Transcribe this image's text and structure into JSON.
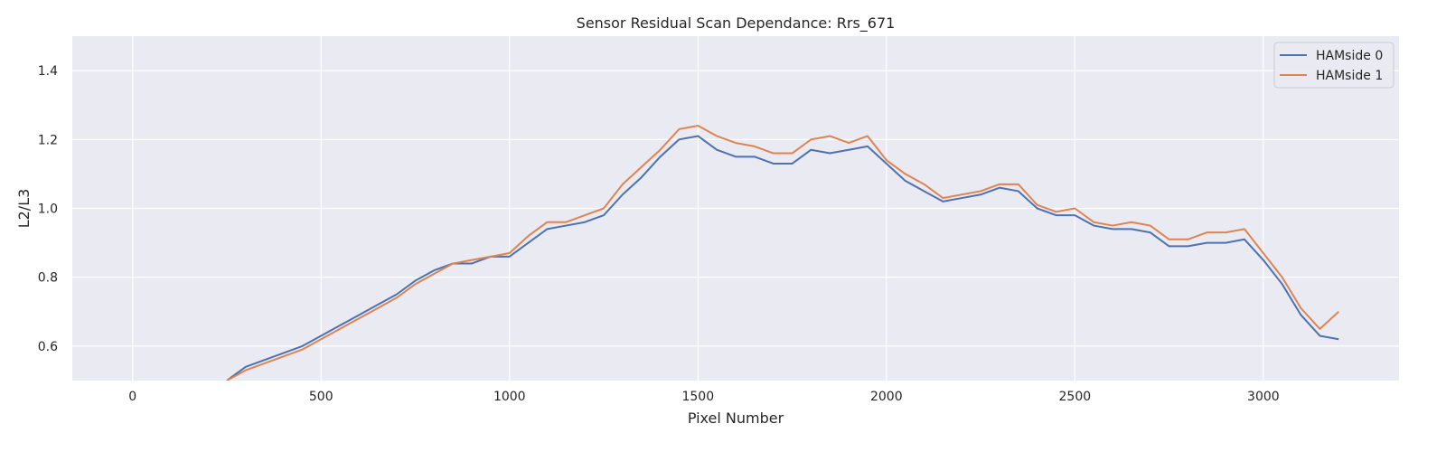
{
  "chart_data": {
    "type": "line",
    "title": "Sensor Residual Scan Dependance: Rrs_671",
    "xlabel": "Pixel Number",
    "ylabel": "L2/L3",
    "xlim": [
      -160,
      3360
    ],
    "ylim": [
      0.5,
      1.5
    ],
    "xticks": [
      0,
      500,
      1000,
      1500,
      2000,
      2500,
      3000
    ],
    "yticks": [
      0.6,
      0.8,
      1.0,
      1.2,
      1.4
    ],
    "xtick_labels": [
      "0",
      "500",
      "1000",
      "1500",
      "2000",
      "2500",
      "3000"
    ],
    "ytick_labels": [
      "0.6",
      "0.8",
      "1.0",
      "1.2",
      "1.4"
    ],
    "grid": true,
    "legend_position": "top-right",
    "background": "#EAEAF2",
    "series": [
      {
        "name": "HAMside 0",
        "color": "#4C72B0",
        "x": [
          250,
          300,
          350,
          400,
          450,
          500,
          550,
          600,
          650,
          700,
          750,
          800,
          850,
          900,
          950,
          1000,
          1050,
          1100,
          1150,
          1200,
          1250,
          1300,
          1350,
          1400,
          1450,
          1500,
          1550,
          1600,
          1650,
          1700,
          1750,
          1800,
          1850,
          1900,
          1950,
          2000,
          2050,
          2100,
          2150,
          2200,
          2250,
          2300,
          2350,
          2400,
          2450,
          2500,
          2550,
          2600,
          2650,
          2700,
          2750,
          2800,
          2850,
          2900,
          2950,
          3000,
          3050,
          3100,
          3150,
          3200
        ],
        "values": [
          0.5,
          0.54,
          0.56,
          0.58,
          0.6,
          0.63,
          0.66,
          0.69,
          0.72,
          0.75,
          0.79,
          0.82,
          0.84,
          0.84,
          0.86,
          0.86,
          0.9,
          0.94,
          0.95,
          0.96,
          0.98,
          1.04,
          1.09,
          1.15,
          1.2,
          1.21,
          1.17,
          1.15,
          1.15,
          1.13,
          1.13,
          1.17,
          1.16,
          1.17,
          1.18,
          1.13,
          1.08,
          1.05,
          1.02,
          1.03,
          1.04,
          1.06,
          1.05,
          1.0,
          0.98,
          0.98,
          0.95,
          0.94,
          0.94,
          0.93,
          0.89,
          0.89,
          0.9,
          0.9,
          0.91,
          0.85,
          0.78,
          0.69,
          0.63,
          0.62
        ]
      },
      {
        "name": "HAMside 1",
        "color": "#DD8452",
        "x": [
          250,
          300,
          350,
          400,
          450,
          500,
          550,
          600,
          650,
          700,
          750,
          800,
          850,
          900,
          950,
          1000,
          1050,
          1100,
          1150,
          1200,
          1250,
          1300,
          1350,
          1400,
          1450,
          1500,
          1550,
          1600,
          1650,
          1700,
          1750,
          1800,
          1850,
          1900,
          1950,
          2000,
          2050,
          2100,
          2150,
          2200,
          2250,
          2300,
          2350,
          2400,
          2450,
          2500,
          2550,
          2600,
          2650,
          2700,
          2750,
          2800,
          2850,
          2900,
          2950,
          3000,
          3050,
          3100,
          3150,
          3200
        ],
        "values": [
          0.5,
          0.53,
          0.55,
          0.57,
          0.59,
          0.62,
          0.65,
          0.68,
          0.71,
          0.74,
          0.78,
          0.81,
          0.84,
          0.85,
          0.86,
          0.87,
          0.92,
          0.96,
          0.96,
          0.98,
          1.0,
          1.07,
          1.12,
          1.17,
          1.23,
          1.24,
          1.21,
          1.19,
          1.18,
          1.16,
          1.16,
          1.2,
          1.21,
          1.19,
          1.21,
          1.14,
          1.1,
          1.07,
          1.03,
          1.04,
          1.05,
          1.07,
          1.07,
          1.01,
          0.99,
          1.0,
          0.96,
          0.95,
          0.96,
          0.95,
          0.91,
          0.91,
          0.93,
          0.93,
          0.94,
          0.87,
          0.8,
          0.71,
          0.65,
          0.7
        ]
      }
    ]
  }
}
